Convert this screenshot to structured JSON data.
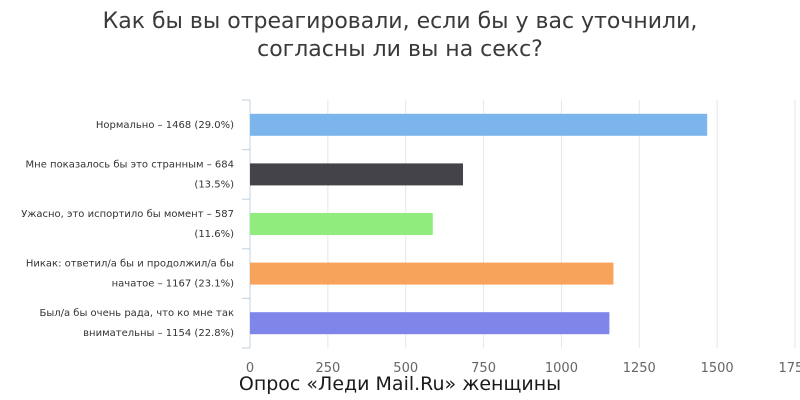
{
  "chart_data": {
    "type": "bar",
    "orientation": "horizontal",
    "title_lines": [
      "Как бы вы отреагировали, если бы у вас уточнили,",
      "согласны ли вы на секс?"
    ],
    "categories": [
      [
        "Нормально – 1468 (29.0%)"
      ],
      [
        "Мне показалось бы это странным – 684",
        "(13.5%)"
      ],
      [
        "Ужасно, это испортило бы момент – 587",
        "(11.6%)"
      ],
      [
        "Никак: ответил/а бы и продолжил/а бы",
        "начатое – 1167 (23.1%)"
      ],
      [
        "Был/а бы очень рада, что ко мне так",
        "внимательны – 1154 (22.8%)"
      ]
    ],
    "values": [
      1468,
      684,
      587,
      1167,
      1154
    ],
    "colors": [
      "#7cb5ec",
      "#434348",
      "#90ed7d",
      "#f7a35c",
      "#8085e9"
    ],
    "xlim": [
      0,
      1750
    ],
    "xticks": [
      0,
      250,
      500,
      750,
      1000,
      1250,
      1500,
      1750
    ],
    "grid": true,
    "caption": "Опрос «Леди Mail.Ru» женщины"
  }
}
